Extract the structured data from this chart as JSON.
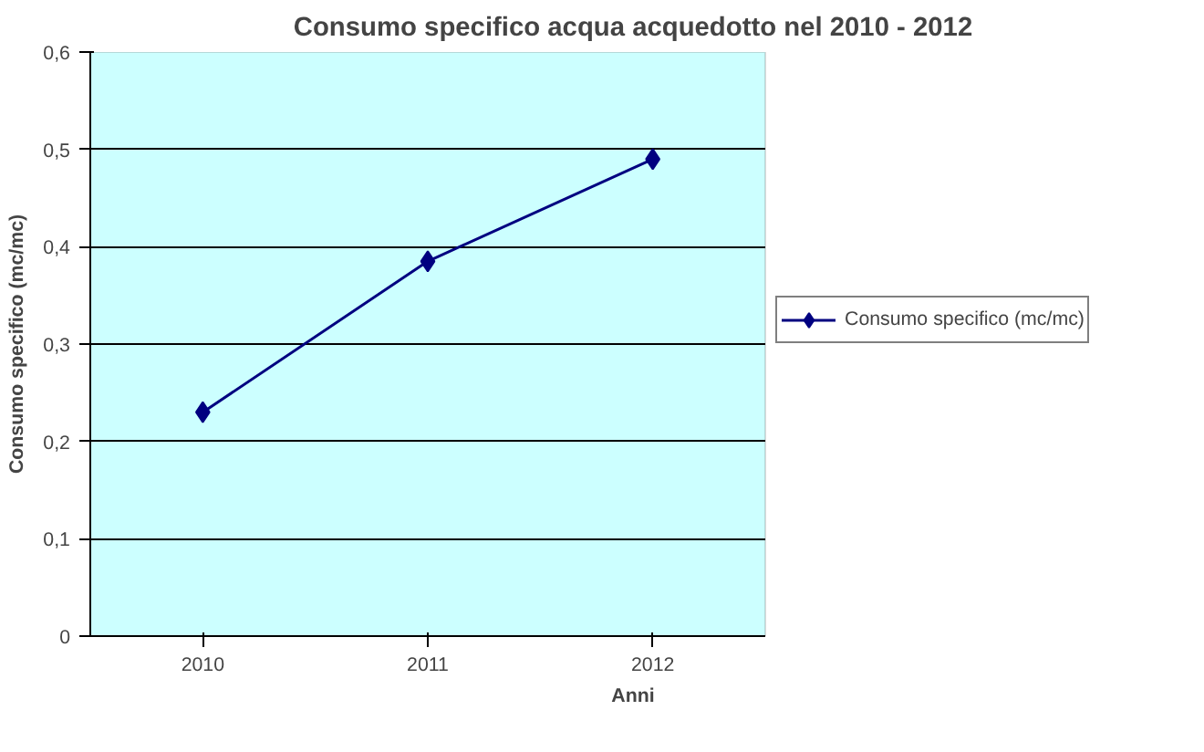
{
  "chart_data": {
    "type": "line",
    "title": "Consumo specifico acqua acquedotto nel 2010 - 2012",
    "xlabel": "Anni",
    "ylabel": "Consumo specifico (mc/mc)",
    "categories": [
      "2010",
      "2011",
      "2012"
    ],
    "series": [
      {
        "name": "Consumo specifico (mc/mc)",
        "color": "#000080",
        "values": [
          0.23,
          0.385,
          0.49
        ]
      }
    ],
    "ylim": [
      0,
      0.6
    ],
    "yticks": [
      {
        "value": 0,
        "label": "0"
      },
      {
        "value": 0.1,
        "label": "0,1"
      },
      {
        "value": 0.2,
        "label": "0,2"
      },
      {
        "value": 0.3,
        "label": "0,3"
      },
      {
        "value": 0.4,
        "label": "0,4"
      },
      {
        "value": 0.5,
        "label": "0,5"
      },
      {
        "value": 0.6,
        "label": "0,6"
      }
    ],
    "grid": "y",
    "legend": "right",
    "marker": "diamond",
    "line_style": "solid"
  }
}
